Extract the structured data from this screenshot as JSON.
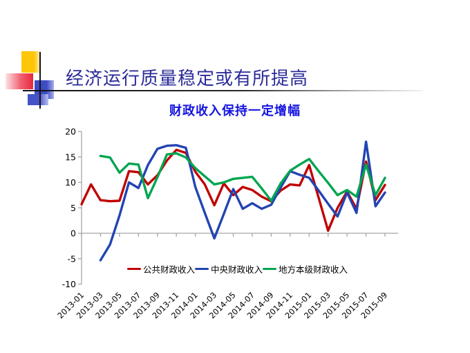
{
  "slide": {
    "title": "经济运行质量稳定或有所提高",
    "subtitle": "财政收入保持一定增幅"
  },
  "colors": {
    "title_text": "#2B2B99",
    "subtitle_text": "#1414DF",
    "axis_gray": "#A6A6A6",
    "decor_yellow": "#FFC608",
    "decor_red": "#E8283E",
    "decor_blue": "#3D4BC4"
  },
  "chart_data": {
    "type": "line",
    "title": "财政收入保持一定增幅",
    "categories": [
      "2013-01",
      "2013-02",
      "2013-03",
      "2013-04",
      "2013-05",
      "2013-06",
      "2013-07",
      "2013-08",
      "2013-09",
      "2013-10",
      "2013-11",
      "2013-12",
      "2014-01",
      "2014-02",
      "2014-03",
      "2014-04",
      "2014-05",
      "2014-06",
      "2014-07",
      "2014-08",
      "2014-09",
      "2014-10",
      "2014-11",
      "2014-12",
      "2015-01",
      "2015-02",
      "2015-03",
      "2015-04",
      "2015-05",
      "2015-06",
      "2015-07",
      "2015-08",
      "2015-09"
    ],
    "x_tick_labels": [
      "2013-01",
      "2013-03",
      "2013-05",
      "2013-07",
      "2013-09",
      "2013-11",
      "2014-01",
      "2014-03",
      "2014-05",
      "2014-07",
      "2014-09",
      "2014-11",
      "2015-01",
      "2015-03",
      "2015-05",
      "2015-07",
      "2015-09"
    ],
    "series": [
      {
        "name": "公共财政收入",
        "color": "#C00000",
        "values": [
          5.7,
          9.6,
          6.5,
          6.3,
          6.4,
          12.2,
          12.0,
          9.6,
          11.4,
          14.3,
          16.4,
          15.8,
          12.1,
          9.6,
          5.5,
          9.8,
          7.5,
          9.1,
          8.5,
          7.2,
          6.3,
          8.4,
          9.6,
          9.4,
          13.4,
          7.0,
          0.5,
          5.0,
          8.2,
          4.8,
          14.1,
          6.5,
          9.5
        ]
      },
      {
        "name": "中央财政收入",
        "color": "#2244B2",
        "values": [
          null,
          null,
          -5.3,
          -2.2,
          3.5,
          10.0,
          8.9,
          13.4,
          16.6,
          17.2,
          17.3,
          16.8,
          9.1,
          4.0,
          -1.0,
          3.8,
          8.7,
          4.8,
          5.9,
          4.8,
          5.6,
          9.0,
          12.2,
          11.5,
          10.9,
          8.4,
          5.8,
          3.3,
          8.0,
          4.0,
          18.0,
          5.3,
          8.0
        ]
      },
      {
        "name": "地方本级财政收入",
        "color": "#00A550",
        "values": [
          null,
          null,
          15.2,
          14.9,
          11.9,
          13.7,
          13.5,
          6.9,
          11.0,
          15.5,
          15.7,
          14.9,
          12.8,
          11.2,
          9.6,
          10.0,
          10.7,
          10.9,
          11.1,
          8.8,
          6.4,
          9.8,
          12.3,
          13.5,
          14.6,
          12.2,
          9.9,
          7.5,
          8.5,
          7.2,
          13.5,
          7.5,
          10.9
        ]
      }
    ],
    "xlabel": "",
    "ylabel": "",
    "ylim": [
      -10,
      20
    ],
    "y_ticks": [
      20,
      15,
      10,
      5,
      0,
      -5,
      -10
    ],
    "grid": false,
    "legend_position": "bottom-inside"
  }
}
